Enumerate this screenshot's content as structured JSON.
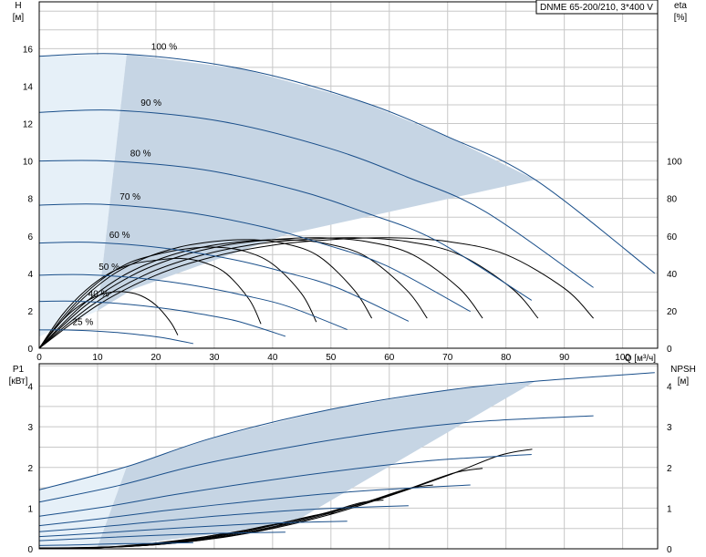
{
  "chart_data": [
    {
      "id": "head",
      "type": "line",
      "legend_text": "DNME 65-200/210, 3*400 V",
      "legend_position": "top-right",
      "xlabel": "Q [м³/ч]",
      "ylabel_top": "H",
      "ylabel_unit": "[м]",
      "y2label_top": "eta",
      "y2label_unit": "[%]",
      "xlim": [
        0,
        106
      ],
      "ylim": [
        0,
        18.5
      ],
      "y2lim": [
        0,
        185
      ],
      "grid": true,
      "x_ticks": [
        0,
        10,
        20,
        30,
        40,
        50,
        60,
        70,
        80,
        90,
        100
      ],
      "y_ticks": [
        0,
        2,
        4,
        6,
        8,
        10,
        12,
        14,
        16
      ],
      "y2_ticks": [
        0,
        20,
        40,
        60,
        80,
        100
      ],
      "x_tick_labels": [
        "0",
        "10",
        "20",
        "30",
        "40",
        "50",
        "60",
        "70",
        "80",
        "90",
        "100"
      ],
      "y_tick_labels": [
        "0",
        "2",
        "4",
        "6",
        "8",
        "10",
        "12",
        "14",
        "16"
      ],
      "y2_tick_labels": [
        "0",
        "20",
        "40",
        "60",
        "80",
        "100"
      ],
      "colors": {
        "curve": "#1a4f8a",
        "eta": "#000000",
        "region_fill": "#c6d5e4",
        "region_light": "#e6f0f8",
        "grid": "#c8c8c8"
      },
      "operating_region": [
        [
          15,
          15.7
        ],
        [
          35,
          14.9
        ],
        [
          55,
          13.2
        ],
        [
          70,
          11.3
        ],
        [
          85,
          9.0
        ],
        [
          42.6,
          6.09
        ],
        [
          16.1,
          3.16
        ],
        [
          10,
          2.0
        ],
        [
          15,
          15.7
        ]
      ],
      "light_region": [
        [
          0,
          15.6
        ],
        [
          15,
          15.7
        ],
        [
          10,
          2.0
        ],
        [
          0,
          0.62
        ]
      ],
      "series": [
        {
          "label": "100 %",
          "x": [
            0,
            15,
            35,
            55,
            70,
            85,
            105.5
          ],
          "y": [
            15.6,
            15.7,
            14.9,
            13.2,
            11.3,
            9.0,
            4.0
          ]
        },
        {
          "label": "90 %",
          "x": [
            0,
            13.5,
            31.5,
            49.5,
            63,
            76.5,
            95
          ],
          "y": [
            12.6,
            12.7,
            12.1,
            10.7,
            9.15,
            7.29,
            3.24
          ]
        },
        {
          "label": "80 %",
          "x": [
            0,
            12,
            28,
            44,
            56,
            68,
            84.4
          ],
          "y": [
            10.0,
            10.0,
            9.54,
            8.45,
            7.23,
            5.76,
            2.56
          ]
        },
        {
          "label": "70 %",
          "x": [
            0,
            10.5,
            24.5,
            38.5,
            49,
            59.5,
            73.9
          ],
          "y": [
            7.64,
            7.69,
            7.3,
            6.47,
            5.54,
            4.41,
            1.96
          ]
        },
        {
          "label": "60 %",
          "x": [
            0,
            9,
            21,
            33,
            42,
            51,
            63.3
          ],
          "y": [
            5.62,
            5.65,
            5.36,
            4.75,
            4.07,
            3.24,
            1.44
          ]
        },
        {
          "label": "50 %",
          "x": [
            0,
            7.5,
            17.5,
            27.5,
            35,
            42.5,
            52.8
          ],
          "y": [
            3.9,
            3.93,
            3.73,
            3.3,
            2.83,
            2.25,
            1.0
          ]
        },
        {
          "label": "40 %",
          "x": [
            0,
            6,
            14,
            22,
            28,
            34,
            42.2
          ],
          "y": [
            2.5,
            2.51,
            2.38,
            2.11,
            1.81,
            1.44,
            0.64
          ]
        },
        {
          "label": "25 %",
          "x": [
            0,
            3.75,
            8.75,
            13.75,
            17.5,
            21.25,
            26.4
          ],
          "y": [
            0.98,
            0.98,
            0.93,
            0.83,
            0.71,
            0.56,
            0.25
          ]
        }
      ],
      "eta_series": [
        {
          "speed": "100 %",
          "x": [
            0,
            10,
            20,
            30,
            40,
            50,
            60,
            70,
            80,
            90,
            95
          ],
          "y": [
            0,
            23,
            39,
            49,
            55,
            58,
            59,
            57,
            50,
            32,
            16
          ]
        },
        {
          "speed": "90 %",
          "x": [
            0,
            9,
            18,
            27,
            36,
            45,
            54,
            63,
            72,
            81,
            85.5
          ],
          "y": [
            0,
            23,
            39,
            49,
            55,
            58,
            59,
            57,
            50,
            32,
            16
          ]
        },
        {
          "speed": "80 %",
          "x": [
            0,
            8,
            16,
            24,
            32,
            40,
            48,
            56,
            64,
            72,
            76
          ],
          "y": [
            0,
            23,
            39,
            49,
            55,
            58,
            59,
            57,
            50,
            32,
            16
          ]
        },
        {
          "speed": "70 %",
          "x": [
            0,
            7,
            14,
            21,
            28,
            35,
            42,
            49,
            56,
            63,
            66.5
          ],
          "y": [
            0,
            22,
            38,
            48,
            54,
            57,
            58,
            56,
            49,
            31,
            16
          ]
        },
        {
          "speed": "60 %",
          "x": [
            0,
            6,
            12,
            18,
            24,
            30,
            36,
            42,
            48,
            54,
            57
          ],
          "y": [
            0,
            22,
            38,
            48,
            54,
            57,
            58,
            56,
            49,
            31,
            16
          ]
        },
        {
          "speed": "50 %",
          "x": [
            0,
            5,
            10,
            15,
            20,
            25,
            30,
            35,
            40,
            45,
            47.5
          ],
          "y": [
            0,
            20,
            35,
            45,
            50,
            53,
            54,
            52,
            45,
            29,
            14
          ]
        },
        {
          "speed": "40 %",
          "x": [
            0,
            4,
            8,
            12,
            16,
            20,
            24,
            28,
            32,
            36,
            38
          ],
          "y": [
            0,
            18,
            31,
            40,
            45,
            47,
            48,
            46,
            40,
            26,
            13
          ]
        },
        {
          "speed": "25 %",
          "x": [
            0,
            2.5,
            5,
            7.5,
            10,
            12.5,
            15,
            17.5,
            20,
            22.5,
            23.75
          ],
          "y": [
            0,
            10,
            18,
            24,
            28,
            30,
            30,
            28,
            23,
            14,
            7
          ]
        }
      ]
    },
    {
      "id": "power",
      "type": "line",
      "ylabel_top": "P1",
      "ylabel_unit": "[кВт]",
      "y2label_top": "NPSH",
      "y2label_unit": "[м]",
      "xlim": [
        0,
        106
      ],
      "ylim": [
        0,
        4.55
      ],
      "y2lim": [
        0,
        4.55
      ],
      "grid": true,
      "y_ticks": [
        0,
        1,
        2,
        3,
        4
      ],
      "y2_ticks": [
        0,
        1,
        2,
        3,
        4
      ],
      "y_tick_labels": [
        "0",
        "1",
        "2",
        "3",
        "4"
      ],
      "y2_tick_labels": [
        "0",
        "1",
        "2",
        "3",
        "4"
      ],
      "colors": {
        "curve": "#1a4f8a",
        "npsh": "#000000",
        "region_fill": "#c6d5e4",
        "region_light": "#e6f0f8",
        "grid": "#c8c8c8"
      },
      "operating_region": [
        [
          15,
          2.02
        ],
        [
          30,
          2.74
        ],
        [
          50,
          3.43
        ],
        [
          70,
          3.9
        ],
        [
          85,
          4.12
        ],
        [
          43,
          0.6
        ],
        [
          16,
          0.11
        ],
        [
          10,
          0.05
        ],
        [
          15,
          2.02
        ]
      ],
      "light_region": [
        [
          0,
          1.45
        ],
        [
          15,
          2.02
        ],
        [
          10,
          0.05
        ],
        [
          0,
          0.02
        ]
      ],
      "series": [
        {
          "label": "100 %",
          "x": [
            0,
            15,
            30,
            50,
            70,
            85,
            105.5
          ],
          "y": [
            1.45,
            2.02,
            2.74,
            3.43,
            3.9,
            4.12,
            4.33
          ]
        },
        {
          "label": "90 %",
          "x": [
            0,
            13.5,
            27,
            45,
            63,
            76.5,
            95
          ],
          "y": [
            1.15,
            1.55,
            2.05,
            2.55,
            2.95,
            3.14,
            3.27
          ]
        },
        {
          "label": "80 %",
          "x": [
            0,
            12,
            24,
            40,
            56,
            68,
            84.4
          ],
          "y": [
            0.8,
            1.05,
            1.35,
            1.7,
            2.0,
            2.18,
            2.32
          ]
        },
        {
          "label": "70 %",
          "x": [
            0,
            10.5,
            21,
            35,
            49,
            59.5,
            73.9
          ],
          "y": [
            0.57,
            0.74,
            0.93,
            1.15,
            1.35,
            1.46,
            1.57
          ]
        },
        {
          "label": "60 %",
          "x": [
            0,
            9,
            18,
            30,
            42,
            51,
            63.3
          ],
          "y": [
            0.42,
            0.52,
            0.64,
            0.8,
            0.93,
            1.0,
            1.06
          ]
        },
        {
          "label": "50 %",
          "x": [
            0,
            7.5,
            15,
            25,
            35,
            42.5,
            52.8
          ],
          "y": [
            0.3,
            0.36,
            0.43,
            0.52,
            0.6,
            0.64,
            0.68
          ]
        },
        {
          "label": "40 %",
          "x": [
            0,
            6,
            12,
            20,
            28,
            34,
            42.2
          ],
          "y": [
            0.2,
            0.24,
            0.28,
            0.33,
            0.37,
            0.39,
            0.41
          ]
        },
        {
          "label": "25 %",
          "x": [
            0,
            3.75,
            7.5,
            12.5,
            17.5,
            21.25,
            26.4
          ],
          "y": [
            0.08,
            0.09,
            0.1,
            0.12,
            0.13,
            0.14,
            0.15
          ]
        }
      ],
      "npsh_series": [
        {
          "speed": "100 %",
          "x": [
            0,
            10,
            20,
            30,
            40,
            50,
            60,
            70,
            79,
            84.5
          ],
          "y": [
            0.02,
            0.04,
            0.1,
            0.25,
            0.5,
            0.85,
            1.3,
            1.8,
            2.3,
            2.45
          ]
        },
        {
          "speed": "90 %",
          "x": [
            0,
            9,
            18,
            27,
            36,
            45,
            54,
            63,
            71,
            76
          ],
          "y": [
            0.02,
            0.03,
            0.08,
            0.2,
            0.4,
            0.69,
            1.05,
            1.46,
            1.86,
            1.98
          ]
        },
        {
          "speed": "80 %",
          "x": [
            0,
            8,
            16,
            24,
            32,
            40,
            48,
            56,
            63,
            67.5
          ],
          "y": [
            0.01,
            0.03,
            0.06,
            0.16,
            0.32,
            0.54,
            0.83,
            1.15,
            1.47,
            1.57
          ]
        },
        {
          "speed": "70 %",
          "x": [
            0,
            7,
            14,
            21,
            28,
            35,
            42,
            49,
            55,
            59
          ],
          "y": [
            0.01,
            0.02,
            0.05,
            0.12,
            0.25,
            0.42,
            0.64,
            0.88,
            1.13,
            1.2
          ]
        },
        {
          "speed": "60 %",
          "x": [
            0,
            6,
            12,
            18,
            24,
            30,
            36,
            42,
            47.5,
            50.7
          ],
          "y": [
            0.01,
            0.01,
            0.04,
            0.09,
            0.18,
            0.31,
            0.47,
            0.65,
            0.83,
            0.88
          ]
        },
        {
          "speed": "50 %",
          "x": [
            0,
            5,
            10,
            15,
            20,
            25,
            30,
            35,
            39.5,
            42.2
          ],
          "y": [
            0.01,
            0.01,
            0.03,
            0.06,
            0.13,
            0.21,
            0.33,
            0.45,
            0.58,
            0.61
          ]
        },
        {
          "speed": "40 %",
          "x": [
            0,
            4,
            8,
            12,
            16,
            20,
            24,
            28,
            31.6,
            33.8
          ],
          "y": [
            0,
            0.01,
            0.02,
            0.04,
            0.08,
            0.14,
            0.21,
            0.29,
            0.37,
            0.39
          ]
        },
        {
          "speed": "25 %",
          "x": [
            0,
            2.5,
            5,
            7.5,
            10,
            12.5,
            15,
            17.5,
            19.8,
            21.1
          ],
          "y": [
            0,
            0,
            0.01,
            0.02,
            0.03,
            0.05,
            0.08,
            0.11,
            0.14,
            0.15
          ]
        }
      ]
    }
  ]
}
